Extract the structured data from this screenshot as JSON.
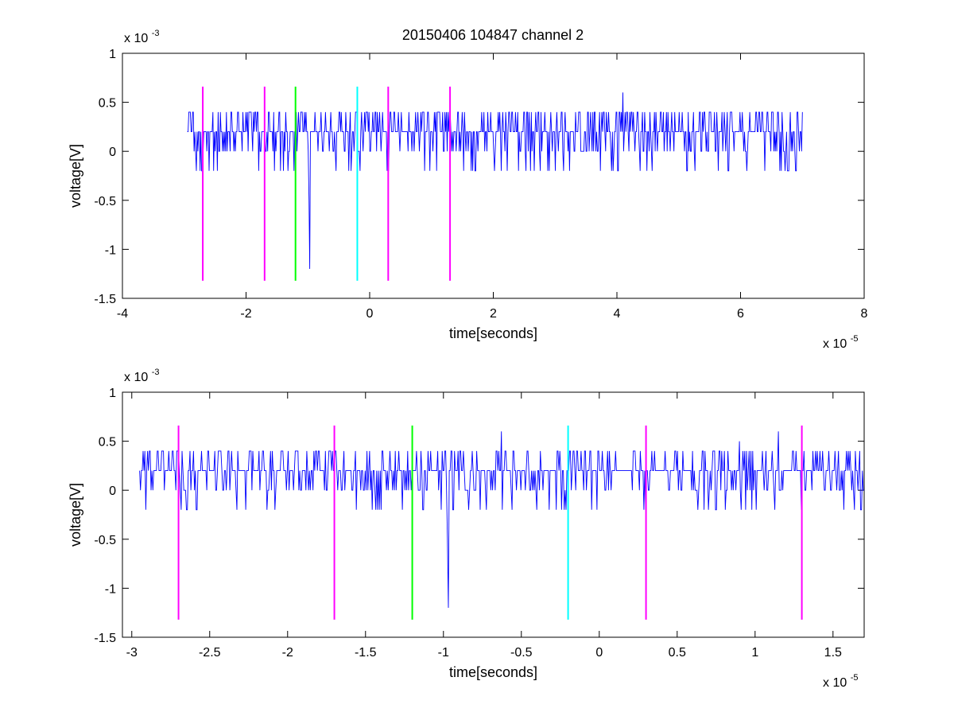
{
  "figure": {
    "title": "20150406 104847 channel 2"
  },
  "colors": {
    "trace": "#0000ff",
    "marker_magenta": "#ff00ff",
    "marker_green": "#00ff00",
    "marker_cyan": "#00ffff"
  },
  "chart_data": [
    {
      "type": "line",
      "title": "20150406 104847 channel 2",
      "xlabel": "time[seconds]",
      "ylabel": "voltage[V]",
      "x_exponent": {
        "base": "x 10",
        "power": "-5"
      },
      "y_exponent": {
        "base": "x 10",
        "power": "-3"
      },
      "xlim": [
        -4,
        8
      ],
      "ylim": [
        -1.5,
        1
      ],
      "xticks": [
        -4,
        -2,
        0,
        2,
        4,
        6,
        8
      ],
      "xtick_labels": [
        "-4",
        "-2",
        "0",
        "2",
        "4",
        "6",
        "8"
      ],
      "yticks": [
        -1.5,
        -1,
        -0.5,
        0,
        0.5,
        1
      ],
      "ytick_labels": [
        "-1.5",
        "-1",
        "-0.5",
        "0",
        "0.5",
        "1"
      ],
      "grid": false,
      "series": [
        {
          "x_range": [
            -2.95,
            7.0
          ],
          "baseline": 0.2,
          "quantum": 0.2,
          "extrema": [
            {
              "x": -2.9,
              "y": 0.4
            },
            {
              "x": -2.6,
              "y": -0.2
            },
            {
              "x": -1.8,
              "y": -0.2
            },
            {
              "x": -1.4,
              "y": -0.2
            },
            {
              "x": -0.97,
              "y": -1.2
            },
            {
              "x": 0.3,
              "y": -0.2
            },
            {
              "x": 1.7,
              "y": -0.2
            },
            {
              "x": 2.6,
              "y": -0.2
            },
            {
              "x": 4.1,
              "y": 0.6
            },
            {
              "x": 5.8,
              "y": -0.2
            },
            {
              "x": 6.9,
              "y": -0.2
            }
          ]
        }
      ],
      "markers": [
        {
          "x": -2.7,
          "color": "magenta",
          "y_range": [
            -1.32,
            0.66
          ]
        },
        {
          "x": -1.7,
          "color": "magenta",
          "y_range": [
            -1.32,
            0.66
          ]
        },
        {
          "x": -1.2,
          "color": "green",
          "y_range": [
            -1.32,
            0.66
          ]
        },
        {
          "x": -0.2,
          "color": "cyan",
          "y_range": [
            -1.32,
            0.66
          ]
        },
        {
          "x": 0.3,
          "color": "magenta",
          "y_range": [
            -1.32,
            0.66
          ]
        },
        {
          "x": 1.3,
          "color": "magenta",
          "y_range": [
            -1.32,
            0.66
          ]
        }
      ]
    },
    {
      "type": "line",
      "title": "",
      "xlabel": "time[seconds]",
      "ylabel": "voltage[V]",
      "x_exponent": {
        "base": "x 10",
        "power": "-5"
      },
      "y_exponent": {
        "base": "x 10",
        "power": "-3"
      },
      "xlim": [
        -3.06,
        1.7
      ],
      "ylim": [
        -1.5,
        1
      ],
      "xticks": [
        -3,
        -2.5,
        -2,
        -1.5,
        -1,
        -0.5,
        0,
        0.5,
        1,
        1.5
      ],
      "xtick_labels": [
        "-3",
        "-2.5",
        "-2",
        "-1.5",
        "-1",
        "-0.5",
        "0",
        "0.5",
        "1",
        "1.5"
      ],
      "yticks": [
        -1.5,
        -1,
        -0.5,
        0,
        0.5,
        1
      ],
      "ytick_labels": [
        "-1.5",
        "-1",
        "-0.5",
        "0",
        "0.5",
        "1"
      ],
      "grid": false,
      "series": [
        {
          "x_range": [
            -2.95,
            1.7
          ],
          "baseline": 0.2,
          "quantum": 0.2,
          "extrema": [
            {
              "x": -2.9,
              "y": 0.4
            },
            {
              "x": -2.65,
              "y": -0.2
            },
            {
              "x": -1.4,
              "y": -0.2
            },
            {
              "x": -1.13,
              "y": -0.2
            },
            {
              "x": -0.97,
              "y": -1.2
            },
            {
              "x": -0.63,
              "y": 0.6
            },
            {
              "x": -0.4,
              "y": -0.2
            },
            {
              "x": 0.3,
              "y": -0.2
            },
            {
              "x": 0.63,
              "y": -0.2
            },
            {
              "x": 0.9,
              "y": 0.5
            },
            {
              "x": 1.15,
              "y": 0.6
            },
            {
              "x": 1.68,
              "y": -0.2
            }
          ]
        }
      ],
      "markers": [
        {
          "x": -2.7,
          "color": "magenta",
          "y_range": [
            -1.32,
            0.66
          ]
        },
        {
          "x": -1.7,
          "color": "magenta",
          "y_range": [
            -1.32,
            0.66
          ]
        },
        {
          "x": -1.2,
          "color": "green",
          "y_range": [
            -1.32,
            0.66
          ]
        },
        {
          "x": -0.2,
          "color": "cyan",
          "y_range": [
            -1.32,
            0.66
          ]
        },
        {
          "x": 0.3,
          "color": "magenta",
          "y_range": [
            -1.32,
            0.66
          ]
        },
        {
          "x": 1.3,
          "color": "magenta",
          "y_range": [
            -1.32,
            0.66
          ]
        }
      ]
    }
  ]
}
